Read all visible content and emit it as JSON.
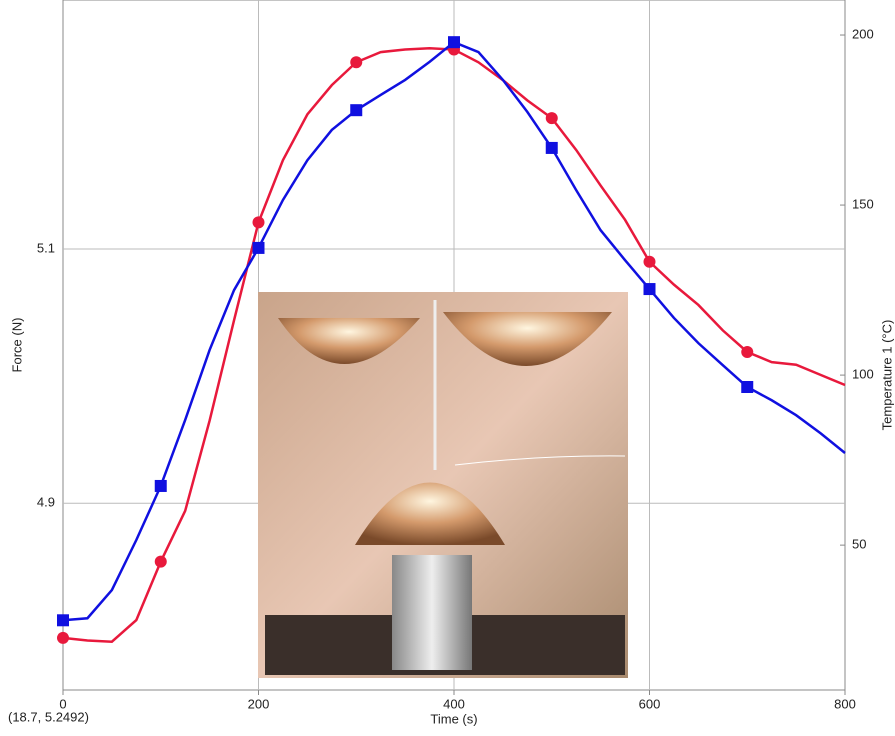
{
  "chart_data": {
    "type": "line",
    "x_label": "Time (s)",
    "y_label": "Force (N)",
    "y2_label": "Temperature 1 (°C)",
    "annotation": "(18.7, 5.2492)",
    "x": [
      0,
      25,
      50,
      75,
      100,
      125,
      150,
      175,
      200,
      225,
      250,
      275,
      300,
      325,
      350,
      375,
      400,
      425,
      450,
      475,
      500,
      525,
      550,
      575,
      600,
      625,
      650,
      675,
      700,
      725,
      750,
      775,
      800
    ],
    "series": [
      {
        "color": "#e8193c",
        "marker": "circle",
        "values": [
          4.794,
          4.792,
          4.791,
          4.808,
          4.854,
          4.894,
          4.965,
          5.044,
          5.121,
          5.17,
          5.206,
          5.229,
          5.247,
          5.255,
          5.257,
          5.258,
          5.257,
          5.247,
          5.233,
          5.217,
          5.203,
          5.178,
          5.15,
          5.123,
          5.09,
          5.072,
          5.056,
          5.036,
          5.019,
          5.011,
          5.009,
          5.001,
          4.993
        ]
      },
      {
        "color": "#1010e0",
        "marker": "square",
        "axis": "y2",
        "values": [
          27.9,
          28.5,
          36.8,
          51.5,
          67.4,
          86.8,
          107.4,
          125.0,
          137.4,
          151.5,
          163.2,
          172.1,
          177.9,
          182.4,
          186.8,
          192.1,
          197.9,
          195.0,
          186.8,
          177.4,
          166.8,
          154.4,
          142.6,
          133.8,
          125.3,
          116.8,
          109.4,
          102.9,
          96.5,
          92.6,
          88.2,
          82.9,
          77.1
        ]
      }
    ],
    "xlim": [
      0,
      800
    ],
    "xticks": [
      0,
      200,
      400,
      600,
      800
    ],
    "ylim": [
      4.753,
      5.296
    ],
    "yticks": [
      4.9,
      5.1
    ],
    "y2lim": [
      7.4,
      210.3
    ],
    "y2ticks": [
      50,
      100,
      150,
      200
    ],
    "grid": true
  }
}
